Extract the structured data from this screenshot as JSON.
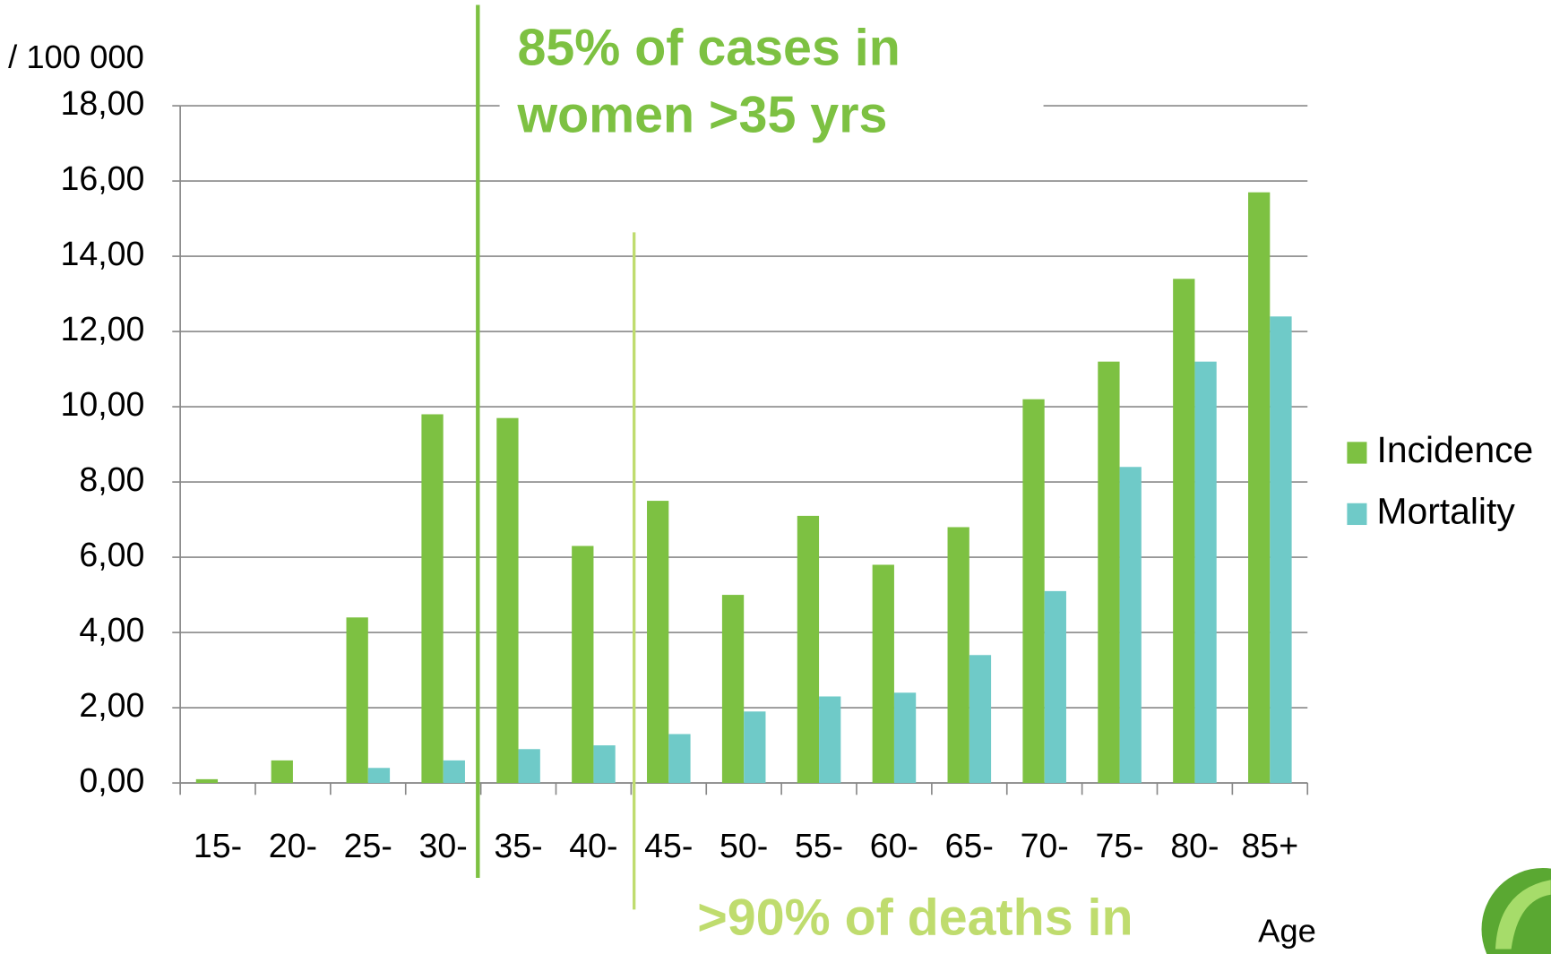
{
  "chart_data": {
    "type": "bar",
    "y_label": "/ 100 000",
    "x_label": "Age",
    "annotations": [
      "85% of cases in",
      "women >35 yrs",
      ">90% of deaths in"
    ],
    "categories": [
      "15-",
      "20-",
      "25-",
      "30-",
      "35-",
      "40-",
      "45-",
      "50-",
      "55-",
      "60-",
      "65-",
      "70-",
      "75-",
      "80-",
      "85+"
    ],
    "series": [
      {
        "name": "Incidence",
        "color": "#7dc142",
        "values": [
          0.1,
          0.6,
          4.4,
          9.8,
          9.7,
          6.3,
          7.5,
          5.0,
          7.1,
          5.8,
          6.8,
          10.2,
          11.2,
          13.4,
          15.7
        ]
      },
      {
        "name": "Mortality",
        "color": "#6fcac8",
        "values": [
          0,
          0,
          0.4,
          0.6,
          0.9,
          1.0,
          1.3,
          1.9,
          2.3,
          2.4,
          3.4,
          5.1,
          8.4,
          11.2,
          12.4
        ]
      }
    ],
    "ylim": [
      0,
      18
    ],
    "yticks": [
      {
        "value": 0,
        "label": "0,00"
      },
      {
        "value": 2,
        "label": "2,00"
      },
      {
        "value": 4,
        "label": "4,00"
      },
      {
        "value": 6,
        "label": "6,00"
      },
      {
        "value": 8,
        "label": "8,00"
      },
      {
        "value": 10,
        "label": "10,00"
      },
      {
        "value": 12,
        "label": "12,00"
      },
      {
        "value": 14,
        "label": "14,00"
      },
      {
        "value": 16,
        "label": "16,00"
      },
      {
        "value": 18,
        "label": "18,00"
      }
    ],
    "grid": true,
    "legend": "right"
  }
}
